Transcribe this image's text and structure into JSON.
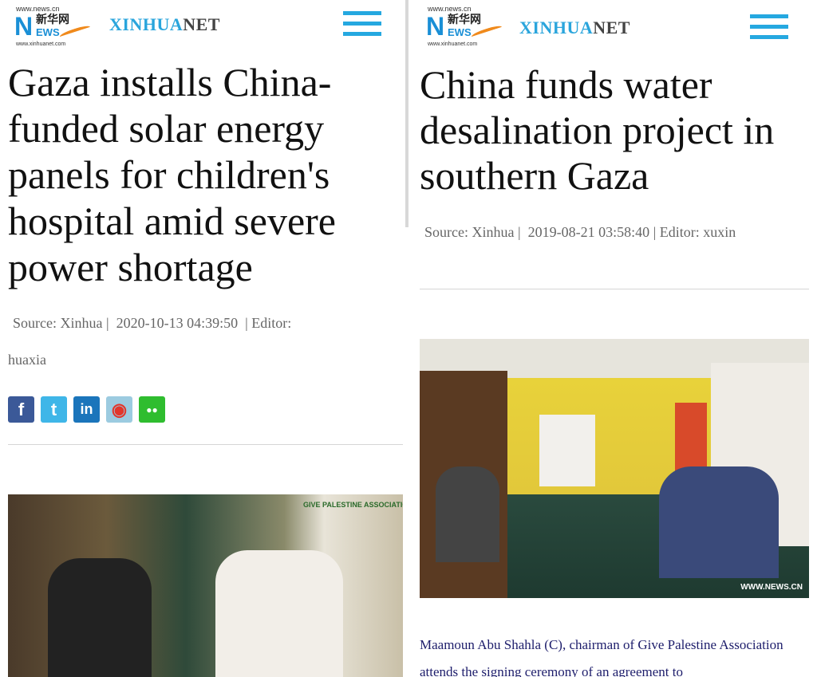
{
  "left": {
    "logo": {
      "url_top": "www.news.cn",
      "chinese": "新华网",
      "news": "EWS",
      "url_bottom": "www.xinhuanet.com"
    },
    "brand": {
      "part1": "XINHUA",
      "part2": "NET"
    },
    "title": "Gaza installs China-funded solar energy panels for children's hospital amid severe power shortage",
    "meta": {
      "source": "Source: Xinhua",
      "sep": "|",
      "datetime": "2020-10-13 04:39:50",
      "editor_label": "Editor:",
      "editor": "huaxia"
    },
    "share": [
      {
        "icon": "facebook-icon",
        "glyph": "f",
        "color": "#3b5998"
      },
      {
        "icon": "twitter-icon",
        "glyph": "t",
        "color": "#3fb6e8"
      },
      {
        "icon": "linkedin-icon",
        "glyph": "in",
        "color": "#1b75bb"
      },
      {
        "icon": "weibo-icon",
        "glyph": "◉",
        "color": "#9ccbe0"
      },
      {
        "icon": "wechat-icon",
        "glyph": "●●",
        "color": "#2fbd2f"
      }
    ],
    "photo_banner": "GIVE PALESTINE ASSOCIATION"
  },
  "right": {
    "logo": {
      "url_top": "www.news.cn",
      "chinese": "新华网",
      "news": "EWS",
      "url_bottom": "www.xinhuanet.com"
    },
    "brand": {
      "part1": "XINHUA",
      "part2": "NET"
    },
    "title": "China funds water desalination project in southern Gaza",
    "meta": {
      "source": "Source: Xinhua",
      "sep": "|",
      "datetime": "2019-08-21 03:58:40",
      "editor": "Editor: xuxin"
    },
    "photo_watermark": "WWW.NEWS.CN",
    "caption": "Maamoun Abu Shahla (C), chairman of Give Palestine Association attends the signing ceremony of an agreement to"
  },
  "colors": {
    "accent": "#25a8e0",
    "caption": "#1d1d6b"
  }
}
